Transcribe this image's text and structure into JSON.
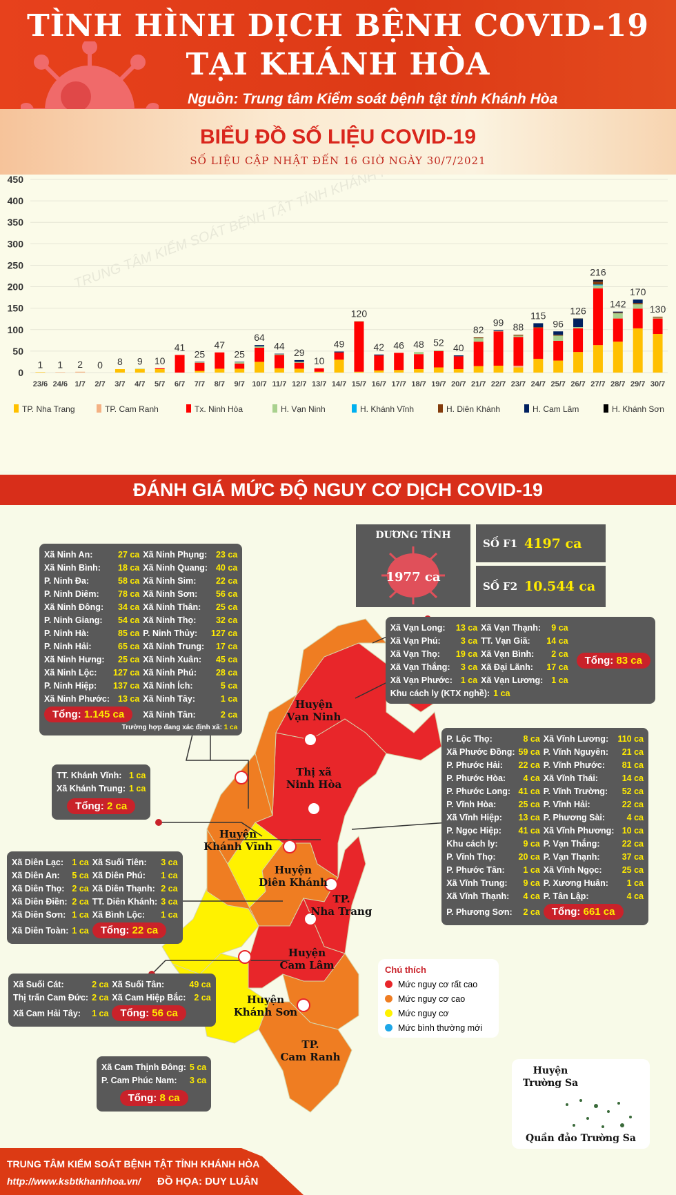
{
  "header": {
    "title1": "TÌNH HÌNH DỊCH BỆNH COVID-19",
    "title2": "TẠI KHÁNH HÒA",
    "source": "Nguồn: Trung tâm Kiểm soát bệnh tật tỉnh Khánh Hòa"
  },
  "band": {
    "title": "BIỂU ĐỒ SỐ LIỆU COVID-19",
    "subtitle": "SỐ LIỆU CẬP NHẬT ĐẾN 16 GIỜ NGÀY 30/7/2021"
  },
  "chart_data": {
    "type": "bar",
    "stacked": true,
    "watermark": "TRUNG TÂM KIỂM SOÁT BỆNH TẬT TỈNH KHÁNH HÒA",
    "ylim": [
      0,
      450
    ],
    "yticks": [
      0,
      50,
      100,
      150,
      200,
      250,
      300,
      350,
      400,
      450
    ],
    "grid": true,
    "legend_position": "bottom",
    "categories": [
      "23/6",
      "24/6",
      "1/7",
      "2/7",
      "3/7",
      "4/7",
      "5/7",
      "6/7",
      "7/7",
      "8/7",
      "9/7",
      "10/7",
      "11/7",
      "12/7",
      "13/7",
      "14/7",
      "15/7",
      "16/7",
      "17/7",
      "18/7",
      "19/7",
      "20/7",
      "21/7",
      "22/7",
      "23/7",
      "24/7",
      "25/7",
      "26/7",
      "27/7",
      "28/7",
      "29/7",
      "30/7"
    ],
    "totals": [
      1,
      1,
      2,
      0,
      8,
      9,
      10,
      41,
      25,
      47,
      25,
      64,
      44,
      29,
      10,
      49,
      120,
      42,
      46,
      48,
      52,
      40,
      82,
      99,
      88,
      115,
      96,
      126,
      216,
      142,
      170,
      130
    ],
    "series": [
      {
        "name": "TP. Nha Trang",
        "color": "#ffc000",
        "values": [
          1,
          0,
          0,
          0,
          8,
          8,
          8,
          0,
          4,
          9,
          9,
          25,
          10,
          9,
          2,
          30,
          2,
          5,
          6,
          8,
          12,
          8,
          15,
          16,
          12,
          32,
          28,
          48,
          64,
          72,
          103,
          90
        ]
      },
      {
        "name": "TP. Cam Ranh",
        "color": "#f4b183",
        "values": [
          0,
          1,
          2,
          0,
          0,
          0,
          0,
          0,
          0,
          0,
          0,
          0,
          0,
          0,
          0,
          0,
          0,
          0,
          0,
          0,
          0,
          0,
          0,
          0,
          4,
          0,
          0,
          0,
          0,
          0,
          0,
          0
        ]
      },
      {
        "name": "Tx. Ninh Hòa",
        "color": "#ff0000",
        "values": [
          0,
          0,
          0,
          0,
          0,
          0,
          2,
          41,
          19,
          38,
          12,
          33,
          31,
          14,
          8,
          17,
          117,
          35,
          40,
          35,
          38,
          30,
          57,
          80,
          67,
          72,
          46,
          55,
          132,
          54,
          46,
          36
        ]
      },
      {
        "name": "H. Vạn Ninh",
        "color": "#a9d18e",
        "values": [
          0,
          0,
          0,
          0,
          0,
          1,
          0,
          0,
          1,
          0,
          3,
          3,
          2,
          2,
          0,
          0,
          1,
          0,
          0,
          5,
          2,
          0,
          8,
          1,
          3,
          0,
          12,
          3,
          7,
          12,
          10,
          2
        ]
      },
      {
        "name": "H. Khánh Vĩnh",
        "color": "#00b0f0",
        "values": [
          0,
          0,
          0,
          0,
          0,
          0,
          0,
          0,
          0,
          0,
          0,
          0,
          0,
          0,
          0,
          0,
          0,
          0,
          0,
          0,
          0,
          0,
          0,
          0,
          0,
          0,
          0,
          0,
          2,
          0,
          0,
          0
        ]
      },
      {
        "name": "H. Diên Khánh",
        "color": "#843c0c",
        "values": [
          0,
          0,
          0,
          0,
          0,
          0,
          0,
          0,
          0,
          0,
          0,
          0,
          0,
          0,
          0,
          0,
          0,
          0,
          0,
          0,
          0,
          0,
          2,
          0,
          2,
          2,
          2,
          0,
          7,
          2,
          3,
          2
        ]
      },
      {
        "name": "H. Cam Lâm",
        "color": "#002060",
        "values": [
          0,
          0,
          0,
          0,
          0,
          0,
          0,
          0,
          1,
          0,
          1,
          3,
          1,
          4,
          0,
          2,
          0,
          2,
          0,
          0,
          0,
          2,
          0,
          2,
          0,
          9,
          8,
          19,
          2,
          2,
          8,
          0
        ]
      },
      {
        "name": "H. Khánh Sơn",
        "color": "#000000",
        "values": [
          0,
          0,
          0,
          0,
          0,
          0,
          0,
          0,
          0,
          0,
          0,
          0,
          0,
          0,
          0,
          0,
          0,
          0,
          0,
          0,
          0,
          0,
          0,
          0,
          0,
          0,
          0,
          1,
          2,
          0,
          0,
          0
        ]
      }
    ]
  },
  "section_title": "ĐÁNH GIÁ MỨC ĐỘ NGUY CƠ DỊCH COVID-19",
  "summary": {
    "positive_label": "DƯƠNG TÍNH",
    "positive_value": "1977 ca",
    "f1_label": "SỐ F1",
    "f1_value": "4197 ca",
    "f2_label": "SỐ F2",
    "f2_value": "10.544 ca"
  },
  "boxes": {
    "ninh_hoa": {
      "rows": [
        [
          "Xã Ninh An:",
          "27 ca",
          "Xã Ninh Phụng:",
          "23 ca"
        ],
        [
          "Xã Ninh Bình:",
          "18 ca",
          "Xã Ninh Quang:",
          "40 ca"
        ],
        [
          "P. Ninh Đa:",
          "58 ca",
          "Xã Ninh Sim:",
          "22 ca"
        ],
        [
          "P. Ninh Diêm:",
          "78 ca",
          "Xã Ninh Sơn:",
          "56 ca"
        ],
        [
          "Xã Ninh Đông:",
          "34 ca",
          "Xã Ninh Thân:",
          "25 ca"
        ],
        [
          "P. Ninh Giang:",
          "54 ca",
          "Xã Ninh Thọ:",
          "32 ca"
        ],
        [
          "P. Ninh Hà:",
          "85 ca",
          "P. Ninh Thủy:",
          "127 ca"
        ],
        [
          "P. Ninh Hải:",
          "65 ca",
          "Xã Ninh Trung:",
          "17 ca"
        ],
        [
          "Xã Ninh Hưng:",
          "25 ca",
          "Xã Ninh Xuân:",
          "45 ca"
        ],
        [
          "Xã Ninh Lộc:",
          "127 ca",
          "Xã Ninh Phú:",
          "28 ca"
        ],
        [
          "P. Ninh Hiệp:",
          "137 ca",
          "Xã Ninh Ích:",
          "5 ca"
        ],
        [
          "Xã Ninh Phước:",
          "13 ca",
          "Xã Ninh Tây:",
          "1 ca"
        ],
        [
          "",
          "",
          "Xã Ninh Tân:",
          "2 ca"
        ]
      ],
      "total_label": "Tổng:",
      "total": "1.145 ca",
      "note": "Trường hợp đang xác định xã:",
      "note_value": "1 ca"
    },
    "van_ninh": {
      "rows": [
        [
          "Xã Vạn Long:",
          "13 ca",
          "Xã Vạn Thạnh:",
          "9 ca"
        ],
        [
          "Xã Vạn Phú:",
          "3 ca",
          "TT. Vạn Giã:",
          "14 ca"
        ],
        [
          "Xã Vạn Thọ:",
          "19 ca",
          "Xã Vạn Bình:",
          "2 ca"
        ],
        [
          "Xã Vạn Thắng:",
          "3 ca",
          "Xã Đại Lãnh:",
          "17 ca"
        ],
        [
          "Xã Vạn Phước:",
          "1 ca",
          "Xã Vạn Lương:",
          "1 ca"
        ],
        [
          "Khu cách ly (KTX nghề):",
          "1 ca",
          "",
          ""
        ]
      ],
      "total_label": "Tổng:",
      "total": "83 ca"
    },
    "nha_trang": {
      "rows": [
        [
          "P. Lộc Thọ:",
          "8 ca",
          "Xã Vĩnh Lương:",
          "110 ca"
        ],
        [
          "Xã Phước Đồng:",
          "59 ca",
          "P. Vĩnh Nguyên:",
          "21 ca"
        ],
        [
          "P. Phước Hải:",
          "22 ca",
          "P. Vĩnh Phước:",
          "81 ca"
        ],
        [
          "P. Phước Hòa:",
          "4 ca",
          "Xã Vĩnh Thái:",
          "14 ca"
        ],
        [
          "P. Phước Long:",
          "41 ca",
          "P. Vĩnh Trường:",
          "52 ca"
        ],
        [
          "P. Vĩnh Hòa:",
          "25 ca",
          "P. Vĩnh Hải:",
          "22 ca"
        ],
        [
          "Xã Vĩnh Hiệp:",
          "13 ca",
          "P. Phương Sài:",
          "4 ca"
        ],
        [
          "P. Ngọc Hiệp:",
          "41 ca",
          "Xã Vĩnh Phương:",
          "10 ca"
        ],
        [
          "Khu cách ly:",
          "9 ca",
          "P. Vạn Thắng:",
          "22 ca"
        ],
        [
          "P. Vĩnh Thọ:",
          "20 ca",
          "P. Vạn Thạnh:",
          "37 ca"
        ],
        [
          "P. Phước Tân:",
          "1 ca",
          "Xã Vĩnh Ngọc:",
          "25 ca"
        ],
        [
          "Xã Vĩnh Trung:",
          "9 ca",
          "P. Xương Huân:",
          "1 ca"
        ],
        [
          "Xã Vĩnh Thạnh:",
          "4 ca",
          "P. Tân Lập:",
          "4 ca"
        ],
        [
          "P. Phương Sơn:",
          "2 ca",
          "",
          ""
        ]
      ],
      "total_label": "Tổng:",
      "total": "661 ca"
    },
    "khanh_vinh": {
      "rows": [
        [
          "TT. Khánh Vĩnh:",
          "1 ca"
        ],
        [
          "Xã Khánh Trung:",
          "1 ca"
        ]
      ],
      "total_label": "Tổng:",
      "total": "2 ca"
    },
    "dien_khanh": {
      "rows": [
        [
          "Xã Diên Lạc:",
          "1 ca",
          "Xã Suối Tiên:",
          "3 ca"
        ],
        [
          "Xã Diên An:",
          "5 ca",
          "Xã Diên Phú:",
          "1 ca"
        ],
        [
          "Xã Diên Thọ:",
          "2 ca",
          "Xã Diên Thạnh:",
          "2 ca"
        ],
        [
          "Xã Diên Điền:",
          "2 ca",
          "TT. Diên Khánh:",
          "3 ca"
        ],
        [
          "Xã Diên Sơn:",
          "1 ca",
          "Xã Bình Lộc:",
          "1 ca"
        ],
        [
          "Xã Diên Toàn:",
          "1 ca",
          "",
          ""
        ]
      ],
      "total_label": "Tổng:",
      "total": "22 ca"
    },
    "cam_lam": {
      "rows": [
        [
          "Xã Suối Cát:",
          "2 ca",
          "Xã Suối Tân:",
          "49 ca"
        ],
        [
          "Thị trấn Cam Đức:",
          "2 ca",
          "Xã Cam Hiệp Bắc:",
          "2 ca"
        ],
        [
          "Xã Cam Hải Tây:",
          "1 ca",
          "",
          ""
        ]
      ],
      "total_label": "Tổng:",
      "total": "56 ca"
    },
    "cam_ranh": {
      "rows": [
        [
          "Xã Cam Thịnh Đông:",
          "5 ca"
        ],
        [
          "P. Cam Phúc Nam:",
          "3 ca"
        ]
      ],
      "total_label": "Tổng:",
      "total": "8 ca"
    }
  },
  "map_labels": {
    "van_ninh": "Huyện\nVạn Ninh",
    "ninh_hoa": "Thị xã\nNinh Hòa",
    "khanh_vinh": "Huyện\nKhánh Vĩnh",
    "dien_khanh": "Huyện\nDiên Khánh",
    "nha_trang": "TP.\nNha Trang",
    "cam_lam": "Huyện\nCam Lâm",
    "khanh_son": "Huyện\nKhánh Sơn",
    "cam_ranh": "TP.\nCam Ranh"
  },
  "legend": {
    "title": "Chú thích",
    "items": [
      {
        "label": "Mức nguy cơ rất cao",
        "color": "#e8262a"
      },
      {
        "label": "Mức nguy cơ cao",
        "color": "#ef7d22"
      },
      {
        "label": "Mức nguy cơ",
        "color": "#fff200"
      },
      {
        "label": "Mức bình thường mới",
        "color": "#1ea7e8"
      }
    ]
  },
  "truong_sa": {
    "title": "Huyện\nTrường Sa",
    "caption": "Quần đảo Trường Sa"
  },
  "footer": {
    "org": "TRUNG TÂM KIỂM SOÁT BỆNH TẬT TỈNH KHÁNH HÒA",
    "url": "http://www.ksbtkhanhhoa.vn/",
    "credit": "ĐỒ HỌA: DUY LUÂN"
  }
}
